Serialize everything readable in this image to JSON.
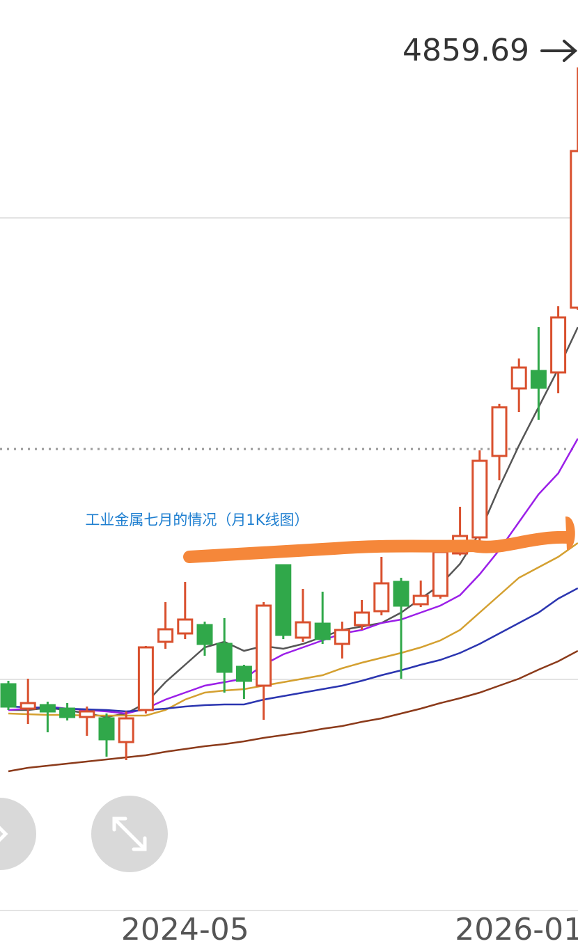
{
  "chart_data": {
    "type": "candlestick",
    "annotation": "工业金属七月的情况（月1K线图）",
    "categories": [
      null,
      null,
      null,
      null,
      null,
      null,
      null,
      null,
      null,
      "2024-05",
      null,
      null,
      null,
      null,
      null,
      null,
      null,
      null,
      null,
      null,
      null,
      null,
      null,
      null,
      null,
      null,
      "2026-01",
      null,
      null,
      null
    ],
    "open": [
      2201,
      2096,
      2111,
      2096,
      2060,
      2054,
      1952,
      2090,
      2384,
      2420,
      2456,
      2375,
      2276,
      2195,
      2714,
      2402,
      2462,
      2375,
      2456,
      2516,
      2642,
      2546,
      2582,
      2765,
      2834,
      3185,
      3476,
      3551,
      3545,
      3824
    ],
    "close": [
      2105,
      2120,
      2084,
      2060,
      2084,
      1964,
      2054,
      2360,
      2438,
      2480,
      2375,
      2255,
      2216,
      2540,
      2414,
      2468,
      2396,
      2435,
      2510,
      2636,
      2540,
      2582,
      2771,
      2840,
      3164,
      3395,
      3566,
      3479,
      3782,
      4499
    ],
    "high": [
      2216,
      2225,
      2126,
      2120,
      2105,
      2075,
      2084,
      2366,
      2555,
      2642,
      2471,
      2486,
      2285,
      2555,
      2714,
      2612,
      2600,
      2471,
      2564,
      2750,
      2660,
      2648,
      2780,
      2966,
      3209,
      3410,
      3605,
      3740,
      3830,
      4859.69
    ],
    "low": [
      2090,
      2030,
      1994,
      2045,
      1979,
      1889,
      1874,
      2075,
      2354,
      2396,
      2324,
      2165,
      2138,
      2048,
      2396,
      2384,
      2375,
      2312,
      2435,
      2498,
      2225,
      2534,
      2570,
      2756,
      2810,
      3080,
      3374,
      3341,
      3455,
      3815
    ],
    "up_color": "#d9502e",
    "down_color": "#30a84a",
    "moving_averages": [
      {
        "color": "#555555",
        "values": [
          2090,
          2090,
          2099,
          2090,
          2075,
          2060,
          2075,
          2120,
          2210,
          2285,
          2360,
          2384,
          2345,
          2366,
          2354,
          2375,
          2405,
          2435,
          2450,
          2465,
          2510,
          2570,
          2630,
          2720,
          2855,
          3050,
          3230,
          3395,
          3560,
          3740
        ]
      },
      {
        "color": "#9b1fe8",
        "values": [
          2090,
          2096,
          2105,
          2096,
          2090,
          2084,
          2075,
          2096,
          2135,
          2165,
          2195,
          2210,
          2225,
          2285,
          2330,
          2360,
          2390,
          2420,
          2435,
          2465,
          2480,
          2510,
          2540,
          2585,
          2675,
          2780,
          2900,
          3020,
          3110,
          3260
        ]
      },
      {
        "color": "#d4a030",
        "values": [
          2075,
          2072,
          2069,
          2069,
          2066,
          2066,
          2066,
          2066,
          2090,
          2135,
          2165,
          2174,
          2180,
          2195,
          2210,
          2225,
          2240,
          2270,
          2294,
          2315,
          2336,
          2360,
          2390,
          2435,
          2510,
          2585,
          2660,
          2705,
          2750,
          2810
        ]
      },
      {
        "color": "#2b35b0",
        "values": [
          2105,
          2102,
          2099,
          2096,
          2093,
          2090,
          2084,
          2090,
          2096,
          2105,
          2111,
          2114,
          2114,
          2135,
          2150,
          2165,
          2180,
          2195,
          2216,
          2240,
          2261,
          2285,
          2306,
          2336,
          2375,
          2420,
          2465,
          2510,
          2570,
          2615
        ]
      },
      {
        "color": "#8b3a1a",
        "values": [
          1826,
          1841,
          1850,
          1859,
          1868,
          1877,
          1886,
          1895,
          1910,
          1922,
          1934,
          1943,
          1955,
          1970,
          1982,
          1994,
          2009,
          2021,
          2039,
          2054,
          2075,
          2096,
          2120,
          2141,
          2165,
          2195,
          2225,
          2264,
          2300,
          2345
        ]
      }
    ],
    "ylim": [
      1220,
      5150
    ]
  }
}
